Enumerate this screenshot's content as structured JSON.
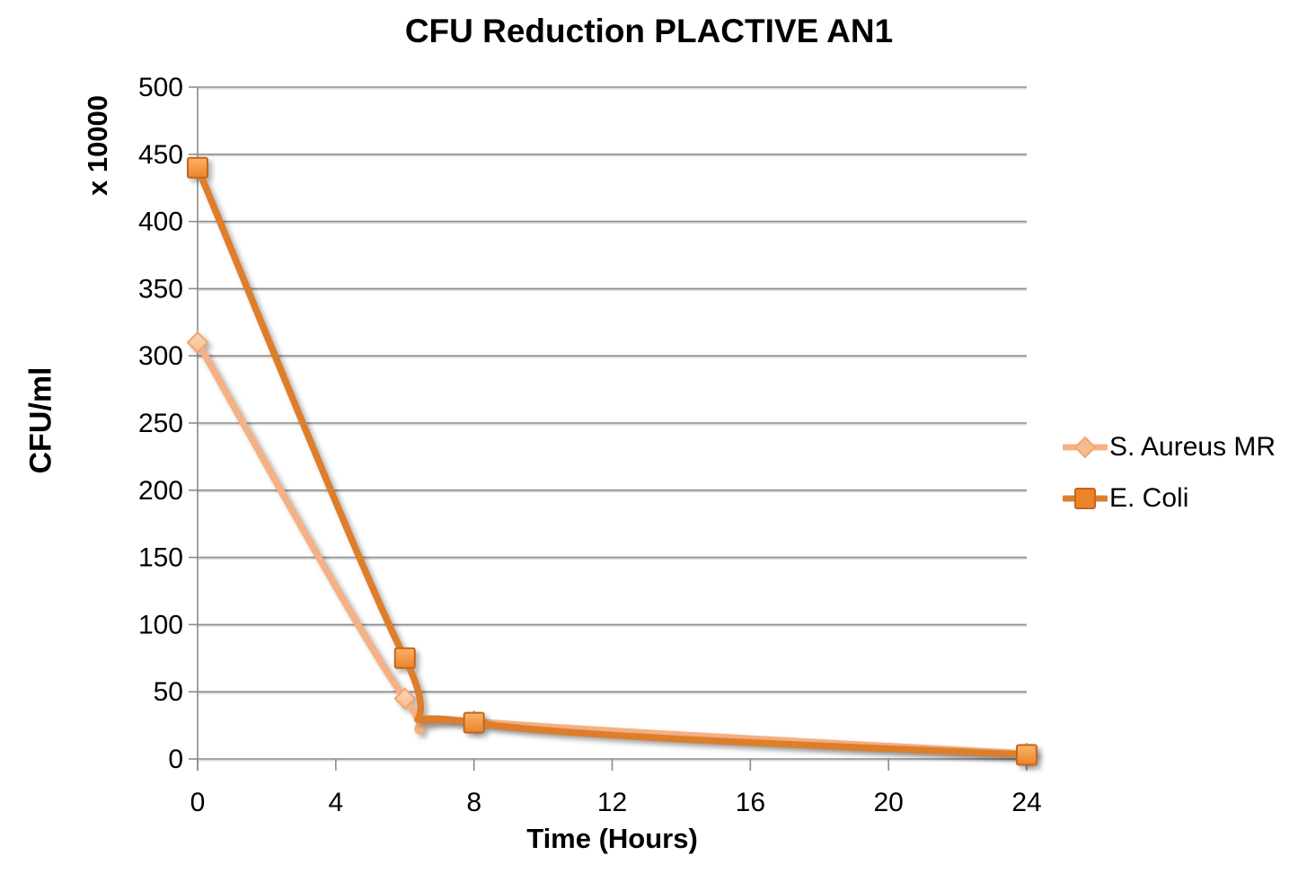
{
  "chart_data": {
    "type": "line",
    "title": "CFU Reduction PLACTIVE AN1",
    "xlabel": "Time (Hours)",
    "ylabel": "CFU/ml",
    "y_multiplier_label": "x 10000",
    "xlim": [
      0,
      24
    ],
    "ylim": [
      0,
      500
    ],
    "xticks": [
      0,
      4,
      8,
      12,
      16,
      20,
      24
    ],
    "yticks": [
      0,
      50,
      100,
      150,
      200,
      250,
      300,
      350,
      400,
      450,
      500
    ],
    "grid": "horizontal",
    "gridline_color": "#8A8A8A",
    "gridline_shadow_color": "#D9D9D9",
    "axis_color": "#8A8A8A",
    "legend_position": "right",
    "x": [
      0,
      6,
      8,
      24
    ],
    "series": [
      {
        "name": "S. Aureus MR",
        "marker": "diamond",
        "values": [
          310,
          45,
          28,
          4
        ],
        "line_color": "#F5B183",
        "marker_fill_light": "#FCD9B8",
        "marker_fill": "#F8BC8C",
        "marker_stroke": "#F0A474"
      },
      {
        "name": "E. Coli",
        "marker": "square",
        "values": [
          440,
          75,
          27,
          3
        ],
        "line_color": "#DE7E2B",
        "marker_fill_light": "#FBB269",
        "marker_fill": "#EC8329",
        "marker_stroke": "#C4671D"
      }
    ]
  }
}
